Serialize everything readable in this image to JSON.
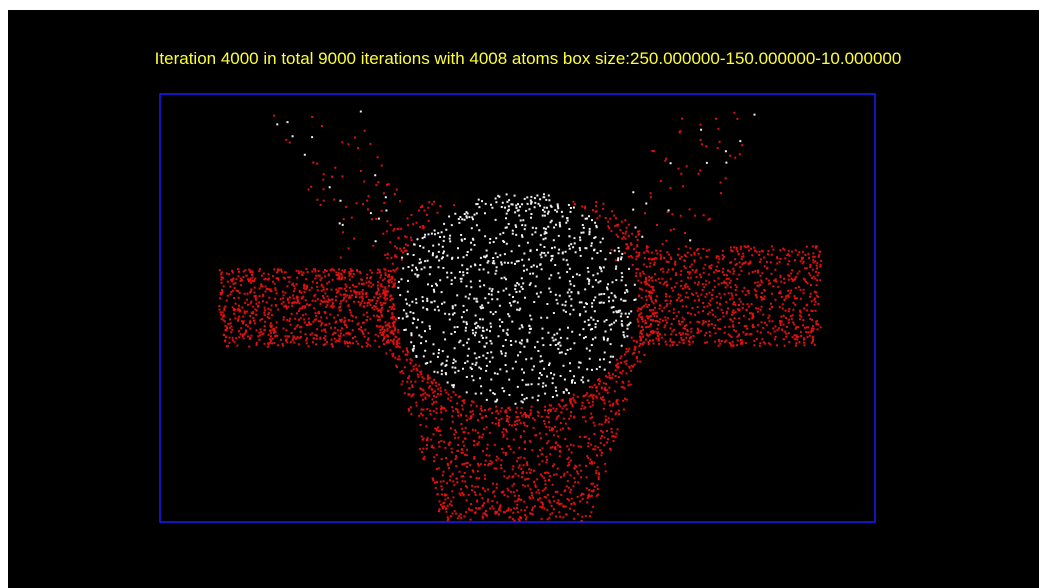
{
  "title": "Iteration 4000 in total 9000 iterations with 4008 atoms  box size:250.000000-150.000000-10.000000"
}
